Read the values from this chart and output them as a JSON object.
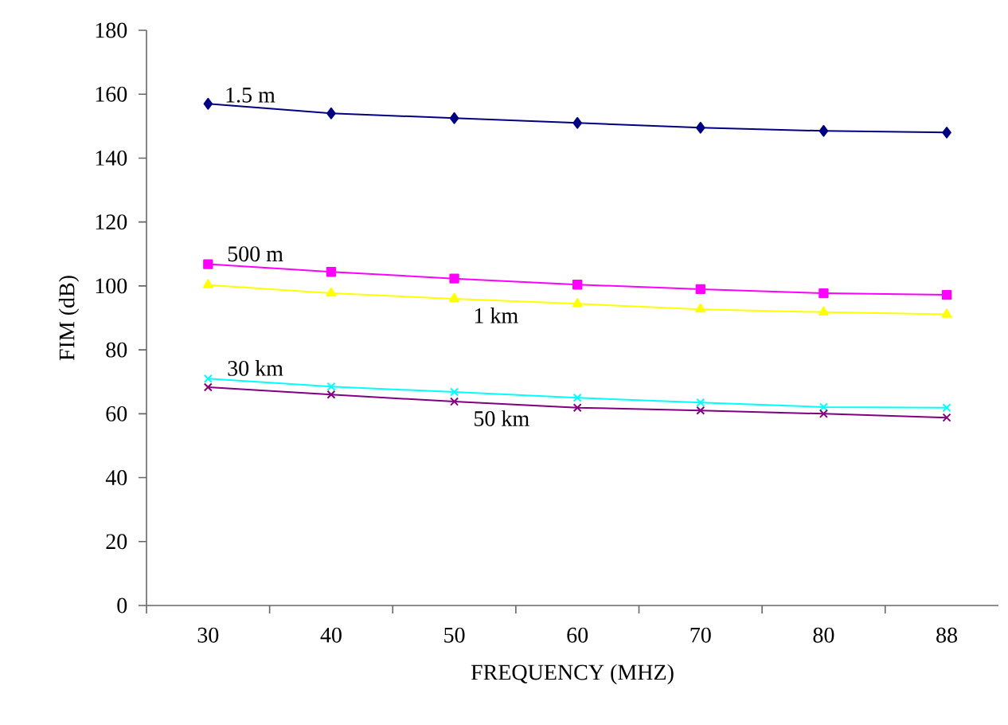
{
  "chart_data": {
    "type": "line",
    "xlabel": "FREQUENCY (MHZ)",
    "ylabel": "FIM (dB)",
    "categories": [
      "30",
      "40",
      "50",
      "60",
      "70",
      "80",
      "88"
    ],
    "ylim": [
      0,
      180
    ],
    "yticks": [
      0,
      20,
      40,
      60,
      80,
      100,
      120,
      140,
      160,
      180
    ],
    "series": [
      {
        "name": "1.5 m",
        "color": "#000080",
        "marker": "diamond",
        "values": [
          157,
          154,
          152.5,
          151,
          149.5,
          148.5,
          148
        ]
      },
      {
        "name": "500 m",
        "color": "#ff00ff",
        "marker": "square",
        "values": [
          106.8,
          104.4,
          102.3,
          100.4,
          99,
          97.7,
          97.2
        ]
      },
      {
        "name": "1 km",
        "color": "#ffff00",
        "marker": "triangle",
        "values": [
          100.3,
          97.7,
          96,
          94.4,
          92.7,
          91.8,
          91.1
        ]
      },
      {
        "name": "30 km",
        "color": "#00ffff",
        "marker": "cross",
        "values": [
          71,
          68.5,
          66.8,
          65,
          63.5,
          62.1,
          61.9
        ]
      },
      {
        "name": "50 km",
        "color": "#800080",
        "marker": "cross",
        "values": [
          68.3,
          66,
          63.8,
          61.9,
          61,
          60,
          58.8
        ]
      }
    ]
  }
}
